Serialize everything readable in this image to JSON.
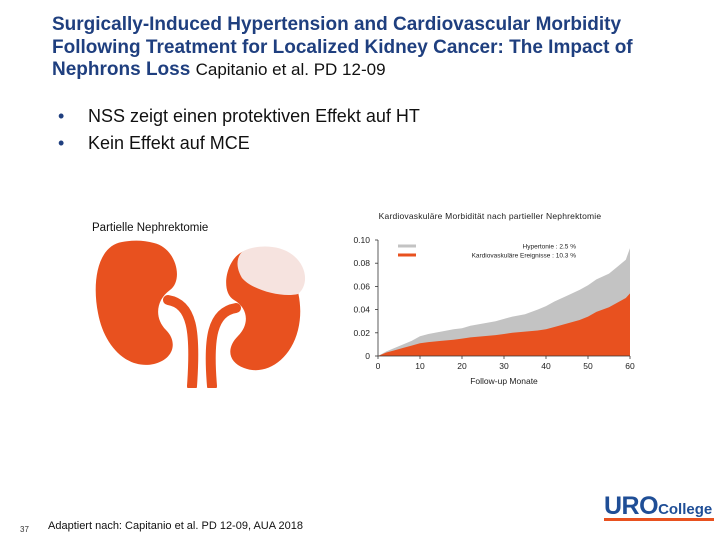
{
  "slide": {
    "title": "Surgically-Induced Hypertension and Cardiovascular Morbidity Following Treatment for Localized Kidney Cancer: The Impact of Nephrons Loss",
    "title_reference": "Capitanio et al. PD 12-09",
    "bullets": [
      "NSS zeigt einen protektiven Effekt auf HT",
      "Kein Effekt auf MCE"
    ],
    "image_label": "Partielle Nephrektomie",
    "page_number": "37",
    "source_note": "Adaptiert nach: Capitanio et al. PD 12-09, AUA 2018",
    "logo": {
      "main": "URO",
      "suffix": "College"
    },
    "colors": {
      "title": "#1f3f7f",
      "orange": "#e8511f",
      "gray": "#c3c3c3",
      "kidney_pale": "#f6e3df"
    }
  },
  "chart_data": {
    "type": "area",
    "title": "Kardiovaskuläre Morbidität nach partieller Nephrektomie",
    "xlabel": "Follow-up Monate",
    "ylabel": "",
    "xlim": [
      0,
      60
    ],
    "ylim": [
      0,
      0.1
    ],
    "x_ticks": [
      0,
      10,
      20,
      30,
      40,
      50,
      60
    ],
    "y_ticks": [
      "0",
      "0.02",
      "0.04",
      "0.06",
      "0.08",
      "0.10"
    ],
    "legend": {
      "position": "top-right",
      "entries": [
        {
          "label": "Hypertonie : 2.5 %",
          "color": "#c3c3c3"
        },
        {
          "label": "Kardiovaskuläre Ereignisse : 10.3 %",
          "color": "#e8511f"
        }
      ]
    },
    "series": [
      {
        "name": "Hypertonie",
        "color": "#c3c3c3",
        "x": [
          0,
          2,
          4,
          6,
          8,
          10,
          12,
          15,
          18,
          20,
          22,
          25,
          28,
          30,
          32,
          35,
          38,
          40,
          42,
          45,
          48,
          50,
          52,
          55,
          57,
          59,
          60
        ],
        "values": [
          0,
          0.004,
          0.007,
          0.01,
          0.013,
          0.017,
          0.019,
          0.021,
          0.023,
          0.024,
          0.026,
          0.028,
          0.03,
          0.032,
          0.034,
          0.036,
          0.04,
          0.043,
          0.047,
          0.052,
          0.057,
          0.061,
          0.066,
          0.071,
          0.077,
          0.083,
          0.093
        ]
      },
      {
        "name": "Kardiovaskuläre Ereignisse",
        "color": "#e8511f",
        "x": [
          0,
          2,
          4,
          6,
          8,
          10,
          12,
          15,
          18,
          20,
          22,
          25,
          28,
          30,
          32,
          35,
          38,
          40,
          42,
          45,
          48,
          50,
          52,
          55,
          57,
          59,
          60
        ],
        "values": [
          0,
          0.003,
          0.005,
          0.007,
          0.009,
          0.011,
          0.012,
          0.013,
          0.014,
          0.015,
          0.016,
          0.017,
          0.018,
          0.019,
          0.02,
          0.021,
          0.022,
          0.023,
          0.025,
          0.028,
          0.031,
          0.034,
          0.038,
          0.042,
          0.046,
          0.05,
          0.054
        ]
      }
    ]
  }
}
